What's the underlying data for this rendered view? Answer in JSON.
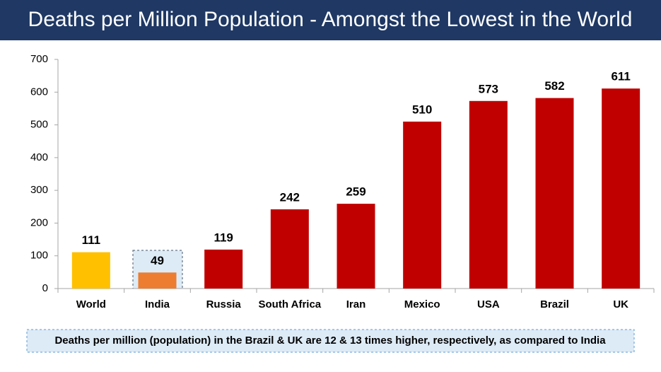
{
  "chart_data": {
    "type": "bar",
    "title": "Deaths per Million Population - Amongst the Lowest in the World",
    "categories": [
      "World",
      "India",
      "Russia",
      "South Africa",
      "Iran",
      "Mexico",
      "USA",
      "Brazil",
      "UK"
    ],
    "values": [
      111,
      49,
      119,
      242,
      259,
      510,
      573,
      582,
      611
    ],
    "colors": [
      "#FFC000",
      "#ED7D31",
      "#C00000",
      "#C00000",
      "#C00000",
      "#C00000",
      "#C00000",
      "#C00000",
      "#C00000"
    ],
    "ylim": [
      0,
      700
    ],
    "yticks": [
      0,
      100,
      200,
      300,
      400,
      500,
      600,
      700
    ],
    "grid": false,
    "note": "Deaths per million (population) in the Brazil & UK are 12 & 13 times higher, respectively, as compared to India"
  }
}
